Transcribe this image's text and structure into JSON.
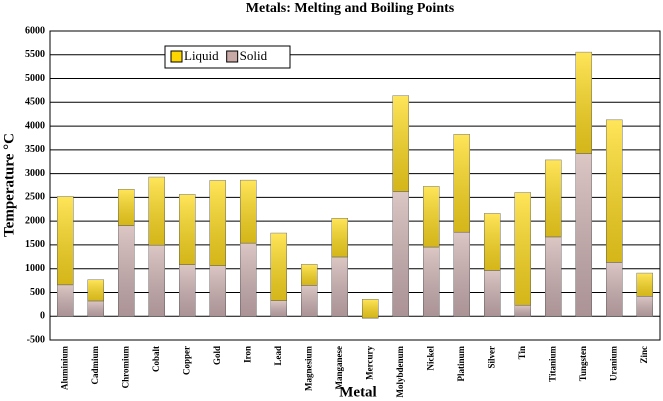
{
  "chart_data": {
    "type": "stacked_bar",
    "title": "Metals: Melting and Boiling Points",
    "x_label": "Metal",
    "y_label": "Temperature °C",
    "categories": [
      "Aluminium",
      "Cadmium",
      "Chromium",
      "Cobalt",
      "Copper",
      "Gold",
      "Iron",
      "Lead",
      "Magnesium",
      "Manganese",
      "Mercury",
      "Molybdenum",
      "Nickel",
      "Platinum",
      "Silver",
      "Tin",
      "Titanium",
      "Tungsten",
      "Uranium",
      "Zinc"
    ],
    "series": [
      {
        "name": "Solid",
        "color": "#c9a9a6",
        "values": [
          660,
          321,
          1907,
          1495,
          1085,
          1064,
          1538,
          327,
          650,
          1246,
          -39,
          2623,
          1455,
          1768,
          962,
          232,
          1668,
          3422,
          1132,
          420
        ]
      },
      {
        "name": "Liquid",
        "color": "#ffd700",
        "values": [
          1859,
          446,
          764,
          1432,
          1477,
          1792,
          1324,
          1422,
          440,
          815,
          396,
          2016,
          1275,
          2057,
          1200,
          2370,
          1619,
          2133,
          2999,
          487
        ]
      }
    ],
    "ylim": [
      -500,
      6000
    ],
    "yticks": [
      -500,
      0,
      500,
      1000,
      1500,
      2000,
      2500,
      3000,
      3500,
      4000,
      4500,
      5000,
      5500,
      6000
    ],
    "grid": true,
    "legend": "top-left"
  }
}
